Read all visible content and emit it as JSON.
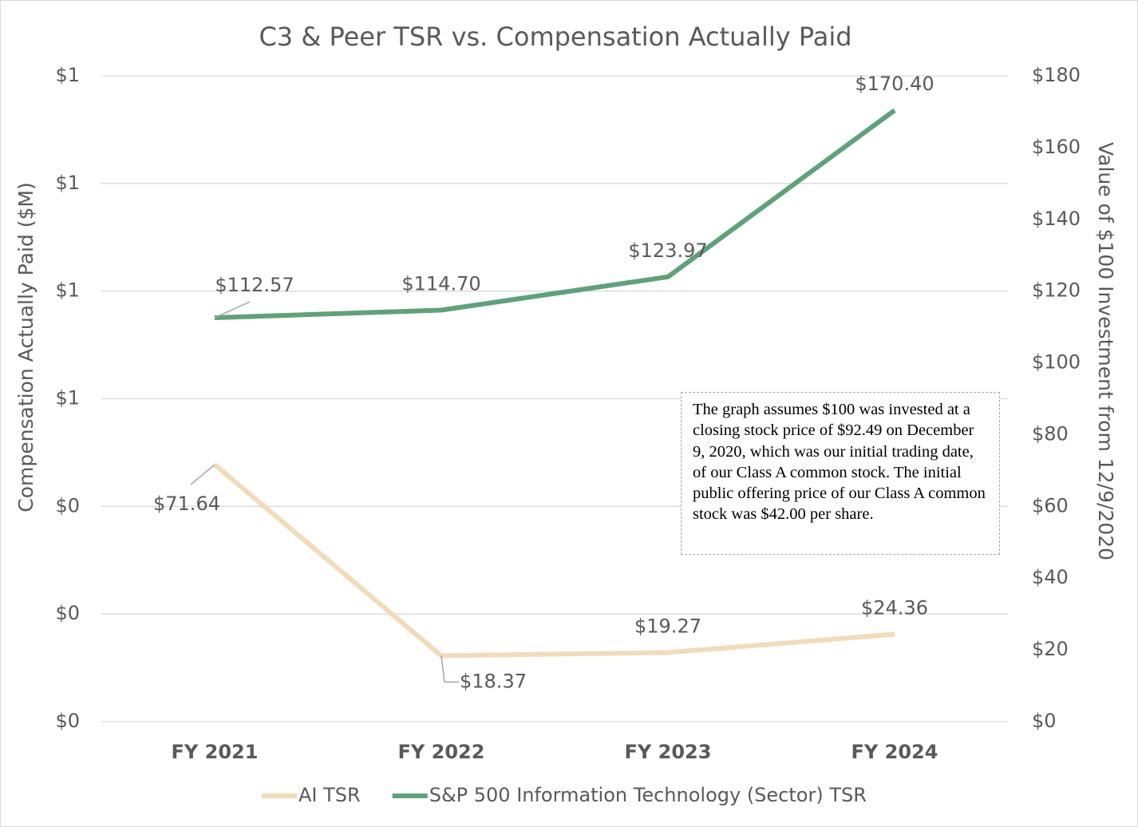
{
  "chart_data": {
    "type": "line",
    "title": "C3 & Peer TSR vs. Compensation Actually Paid",
    "y_label": "Compensation Actually Paid ($M)",
    "y2_label": "Value of $100 Investment from 12/9/2020",
    "categories": [
      "FY 2021",
      "FY 2022",
      "FY 2023",
      "FY 2024"
    ],
    "series": [
      {
        "name": "AI TSR",
        "color": "#f2dbb8",
        "axis": "y2",
        "values": [
          71.64,
          18.37,
          19.27,
          24.36
        ],
        "value_labels": [
          "$71.64",
          "$18.37",
          "$19.27",
          "$24.36"
        ]
      },
      {
        "name": "S&P 500 Information Technology (Sector) TSR",
        "color": "#5ea27a",
        "axis": "y2",
        "values": [
          112.57,
          114.7,
          123.97,
          170.4
        ],
        "value_labels": [
          "$112.57",
          "$114.70",
          "$123.97",
          "$170.40"
        ]
      }
    ],
    "ylim": [
      0,
      1.2
    ],
    "yticks": [
      {
        "value": 0,
        "label": "$0"
      },
      {
        "value": 0.2,
        "label": "$0"
      },
      {
        "value": 0.4,
        "label": "$0"
      },
      {
        "value": 0.6,
        "label": "$1"
      },
      {
        "value": 0.8,
        "label": "$1"
      },
      {
        "value": 1.0,
        "label": "$1"
      },
      {
        "value": 1.2,
        "label": "$1"
      }
    ],
    "y2lim": [
      0,
      180
    ],
    "y2ticks": [
      {
        "value": 0,
        "label": "$0"
      },
      {
        "value": 20,
        "label": "$20"
      },
      {
        "value": 40,
        "label": "$40"
      },
      {
        "value": 60,
        "label": "$60"
      },
      {
        "value": 80,
        "label": "$80"
      },
      {
        "value": 100,
        "label": "$100"
      },
      {
        "value": 120,
        "label": "$120"
      },
      {
        "value": 140,
        "label": "$140"
      },
      {
        "value": 160,
        "label": "$160"
      },
      {
        "value": 180,
        "label": "$180"
      }
    ],
    "grid": true,
    "legend": "bottom",
    "annotation": "The graph assumes $100 was invested at a closing stock price of $92.49 on December 9, 2020, which was our initial trading date, of our Class A common stock. The initial public offering price of our Class A common stock was $42.00 per share."
  }
}
